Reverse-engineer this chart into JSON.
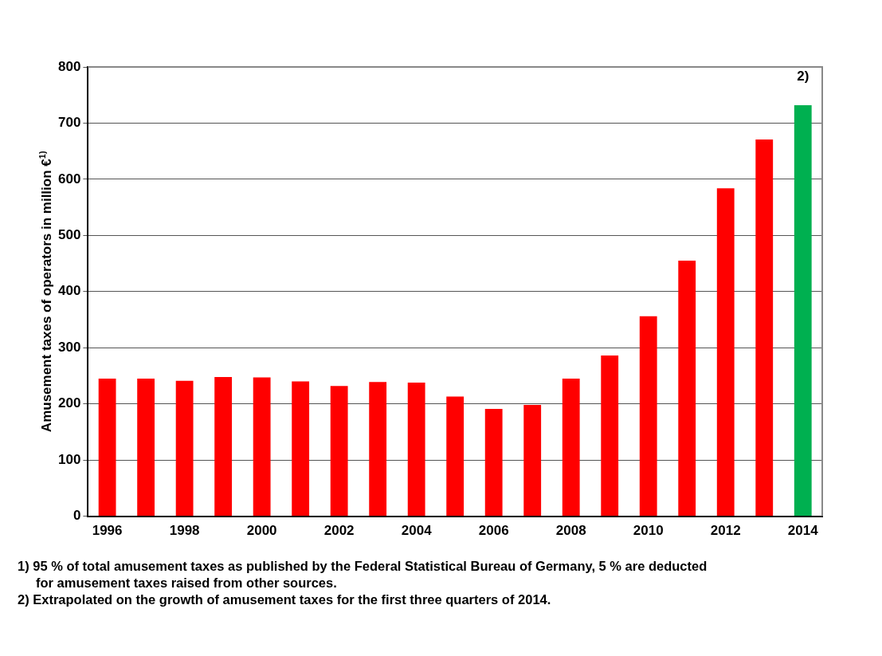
{
  "chart_data": {
    "type": "bar",
    "ylabel": "Amusement taxes of operators in million €$^{1)}$",
    "categories": [
      "1996",
      null,
      "1998",
      null,
      "2000",
      null,
      "2002",
      null,
      "2004",
      null,
      "2006",
      null,
      "2008",
      null,
      "2010",
      null,
      "2012",
      null,
      "2014"
    ],
    "values": [
      245,
      245,
      241,
      248,
      247,
      240,
      232,
      239,
      238,
      213,
      191,
      198,
      245,
      286,
      356,
      455,
      584,
      671,
      732
    ],
    "colors": [
      "#ff0000",
      "#ff0000",
      "#ff0000",
      "#ff0000",
      "#ff0000",
      "#ff0000",
      "#ff0000",
      "#ff0000",
      "#ff0000",
      "#ff0000",
      "#ff0000",
      "#ff0000",
      "#ff0000",
      "#ff0000",
      "#ff0000",
      "#ff0000",
      "#ff0000",
      "#ff0000",
      "#00b050"
    ],
    "ylim": [
      0,
      800
    ],
    "yticks": [
      0,
      100,
      200,
      300,
      400,
      500,
      600,
      700,
      800
    ],
    "grid": "y",
    "legend": false,
    "annotations": [
      {
        "text": "2)",
        "x": "2014",
        "y": 732
      },
      "1) 95 % of total amusement taxes as published by the Federal Statistical Bureau of Germany, 5 % are deducted for amusement taxes raised from other sources.",
      "2) Extrapolated on the growth of amusement taxes for the first three quarters of 2014."
    ]
  }
}
